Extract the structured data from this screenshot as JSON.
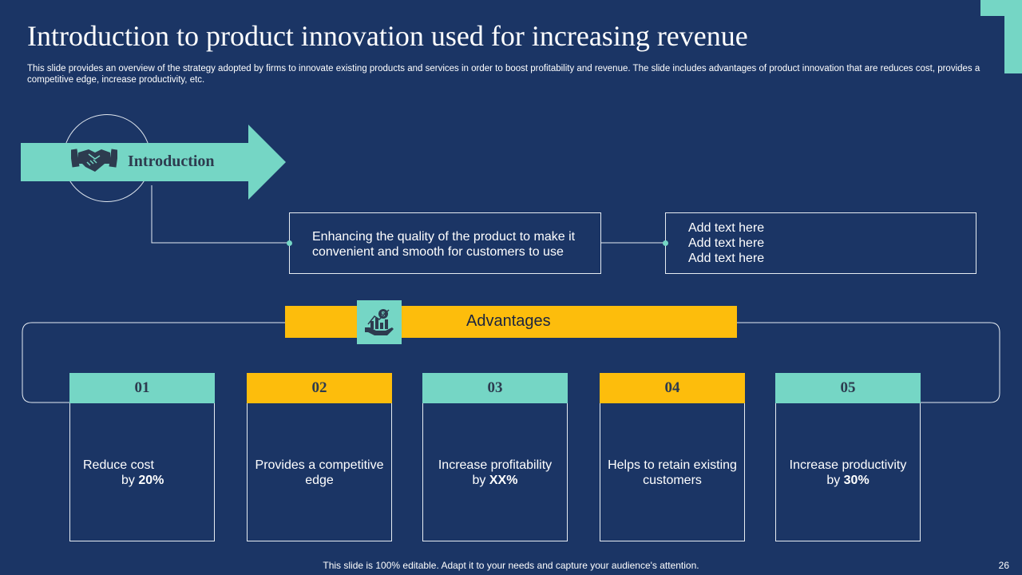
{
  "title": "Introduction to product innovation used for increasing revenue",
  "subtitle": "This slide provides an overview of the strategy adopted by firms to innovate existing products and services in order to boost profitability and revenue. The slide includes advantages of product innovation that are reduces cost, provides a competitive edge, increase productivity, etc.",
  "introduction": {
    "label": "Introduction",
    "icon": "handshake-icon",
    "description": "Enhancing the quality of the product to make it convenient and smooth for customers to use",
    "placeholder_lines": [
      "Add text here",
      "Add text here",
      "Add text here"
    ]
  },
  "advantages": {
    "label": "Advantages",
    "icon": "revenue-growth-icon",
    "items": [
      {
        "number": "01",
        "text": "Reduce cost",
        "text2": "by ",
        "bold": "20%",
        "color": "teal"
      },
      {
        "number": "02",
        "text": "Provides a competitive",
        "text2": "edge",
        "bold": "",
        "color": "gold"
      },
      {
        "number": "03",
        "text": "Increase profitability",
        "text2": "by ",
        "bold": "XX%",
        "color": "teal"
      },
      {
        "number": "04",
        "text": "Helps to retain existing",
        "text2": "customers",
        "bold": "",
        "color": "gold"
      },
      {
        "number": "05",
        "text": "Increase productivity",
        "text2": "by ",
        "bold": "30%",
        "color": "teal"
      }
    ]
  },
  "footer": "This slide is 100% editable. Adapt it to your needs and capture your audience's attention.",
  "page_number": "26",
  "colors": {
    "background": "#1b3565",
    "accent_teal": "#75d6c5",
    "accent_gold": "#fdbd0c",
    "text_dark": "#2d3b4f"
  }
}
